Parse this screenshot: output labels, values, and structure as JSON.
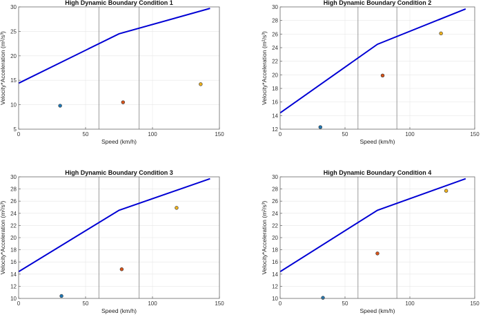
{
  "colors": {
    "boundary": "#0000d4",
    "vline": "#9a9a9a",
    "grid": "#e6e6e6",
    "point_colors": [
      "#1f77b4",
      "#d9541a",
      "#edb120"
    ]
  },
  "chart_data": [
    {
      "type": "scatter",
      "title": "High Dynamic Boundary Condition 1",
      "xlabel": "Speed (km/h)",
      "ylabel": "Velocity*Acceleration (m²/s³)",
      "xlim": [
        0,
        150
      ],
      "ylim": [
        5,
        30
      ],
      "xticks": [
        0,
        50,
        100,
        150
      ],
      "yticks": [
        5,
        10,
        15,
        20,
        25,
        30
      ],
      "grid": true,
      "boundary_line": {
        "x": [
          0,
          75,
          143
        ],
        "y": [
          14.4,
          24.5,
          29.7
        ]
      },
      "vertical_lines": [
        60,
        90
      ],
      "points": [
        {
          "x": 31,
          "y": 9.8
        },
        {
          "x": 78,
          "y": 10.5
        },
        {
          "x": 136,
          "y": 14.2
        }
      ]
    },
    {
      "type": "scatter",
      "title": "High Dynamic Boundary Condition 2",
      "xlabel": "Speed (km/h)",
      "ylabel": "Velocity*Acceleration (m²/s³)",
      "xlim": [
        0,
        150
      ],
      "ylim": [
        12,
        30
      ],
      "xticks": [
        0,
        50,
        100,
        150
      ],
      "yticks": [
        12,
        14,
        16,
        18,
        20,
        22,
        24,
        26,
        28,
        30
      ],
      "grid": true,
      "boundary_line": {
        "x": [
          0,
          75,
          143
        ],
        "y": [
          14.4,
          24.5,
          29.7
        ]
      },
      "vertical_lines": [
        60,
        90
      ],
      "points": [
        {
          "x": 31,
          "y": 12.3
        },
        {
          "x": 79,
          "y": 19.9
        },
        {
          "x": 124,
          "y": 26.1
        }
      ]
    },
    {
      "type": "scatter",
      "title": "High Dynamic Boundary Condition 3",
      "xlabel": "Speed (km/h)",
      "ylabel": "Velocity*Acceleration (m²/s³)",
      "xlim": [
        0,
        150
      ],
      "ylim": [
        10,
        30
      ],
      "xticks": [
        0,
        50,
        100,
        150
      ],
      "yticks": [
        10,
        12,
        14,
        16,
        18,
        20,
        22,
        24,
        26,
        28,
        30
      ],
      "grid": true,
      "boundary_line": {
        "x": [
          0,
          75,
          143
        ],
        "y": [
          14.4,
          24.5,
          29.7
        ]
      },
      "vertical_lines": [
        60,
        90
      ],
      "points": [
        {
          "x": 32,
          "y": 10.4
        },
        {
          "x": 77,
          "y": 14.8
        },
        {
          "x": 118,
          "y": 24.9
        }
      ]
    },
    {
      "type": "scatter",
      "title": "High Dynamic Boundary Condition 4",
      "xlabel": "Speed (km/h)",
      "ylabel": "Velocity*Acceleration (m²/s³)",
      "xlim": [
        0,
        150
      ],
      "ylim": [
        10,
        30
      ],
      "xticks": [
        0,
        50,
        100,
        150
      ],
      "yticks": [
        10,
        12,
        14,
        16,
        18,
        20,
        22,
        24,
        26,
        28,
        30
      ],
      "grid": true,
      "boundary_line": {
        "x": [
          0,
          75,
          143
        ],
        "y": [
          14.4,
          24.5,
          29.7
        ]
      },
      "vertical_lines": [
        60,
        90
      ],
      "points": [
        {
          "x": 33,
          "y": 10.1
        },
        {
          "x": 75,
          "y": 17.4
        },
        {
          "x": 128,
          "y": 27.7
        }
      ]
    }
  ]
}
